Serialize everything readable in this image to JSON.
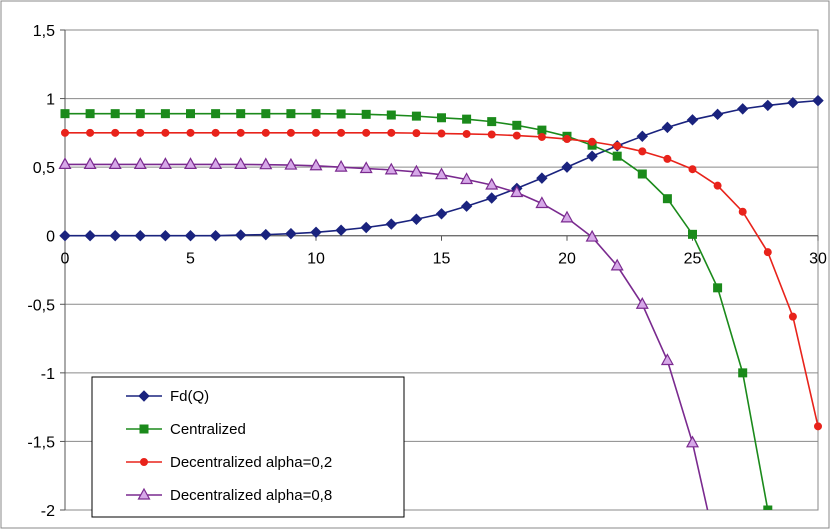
{
  "chart_data": {
    "type": "line",
    "title": "",
    "xlabel": "",
    "ylabel": "",
    "xlim": [
      0,
      30
    ],
    "ylim": [
      -2,
      1.5
    ],
    "x_ticks": [
      "0",
      "5",
      "10",
      "15",
      "20",
      "25",
      "30"
    ],
    "y_ticks": [
      "1,5",
      "1",
      "0,5",
      "0",
      "-0,5",
      "-1",
      "-1,5",
      "-2"
    ],
    "grid": "horizontal",
    "legend_position": "bottom-left",
    "series": [
      {
        "name": "Fd(Q)",
        "color": "#1a237e",
        "marker": "diamond",
        "points": [
          [
            0,
            0
          ],
          [
            1,
            0
          ],
          [
            2,
            0
          ],
          [
            3,
            0
          ],
          [
            4,
            0
          ],
          [
            5,
            0
          ],
          [
            6,
            0
          ],
          [
            7,
            0.005
          ],
          [
            8,
            0.008
          ],
          [
            9,
            0.015
          ],
          [
            10,
            0.025
          ],
          [
            11,
            0.04
          ],
          [
            12,
            0.06
          ],
          [
            13,
            0.085
          ],
          [
            14,
            0.12
          ],
          [
            15,
            0.16
          ],
          [
            16,
            0.215
          ],
          [
            17,
            0.275
          ],
          [
            18,
            0.345
          ],
          [
            19,
            0.42
          ],
          [
            20,
            0.5
          ],
          [
            21,
            0.58
          ],
          [
            22,
            0.655
          ],
          [
            23,
            0.725
          ],
          [
            24,
            0.79
          ],
          [
            25,
            0.845
          ],
          [
            26,
            0.885
          ],
          [
            27,
            0.925
          ],
          [
            28,
            0.95
          ],
          [
            29,
            0.97
          ],
          [
            30,
            0.985
          ]
        ]
      },
      {
        "name": "Centralized",
        "color": "#1b8a1b",
        "marker": "square",
        "points": [
          [
            0,
            0.89
          ],
          [
            1,
            0.89
          ],
          [
            2,
            0.89
          ],
          [
            3,
            0.89
          ],
          [
            4,
            0.89
          ],
          [
            5,
            0.89
          ],
          [
            6,
            0.89
          ],
          [
            7,
            0.89
          ],
          [
            8,
            0.89
          ],
          [
            9,
            0.89
          ],
          [
            10,
            0.89
          ],
          [
            11,
            0.888
          ],
          [
            12,
            0.885
          ],
          [
            13,
            0.88
          ],
          [
            14,
            0.872
          ],
          [
            15,
            0.86
          ],
          [
            16,
            0.85
          ],
          [
            17,
            0.832
          ],
          [
            18,
            0.805
          ],
          [
            19,
            0.77
          ],
          [
            20,
            0.725
          ],
          [
            21,
            0.66
          ],
          [
            22,
            0.58
          ],
          [
            23,
            0.45
          ],
          [
            24,
            0.27
          ],
          [
            25,
            0.01
          ],
          [
            26,
            -0.38
          ],
          [
            27,
            -1
          ],
          [
            28,
            -2
          ]
        ]
      },
      {
        "name": "Decentralized alpha=0,2",
        "color": "#e8231b",
        "marker": "circle",
        "points": [
          [
            0,
            0.75
          ],
          [
            1,
            0.75
          ],
          [
            2,
            0.75
          ],
          [
            3,
            0.75
          ],
          [
            4,
            0.75
          ],
          [
            5,
            0.75
          ],
          [
            6,
            0.75
          ],
          [
            7,
            0.75
          ],
          [
            8,
            0.75
          ],
          [
            9,
            0.75
          ],
          [
            10,
            0.75
          ],
          [
            11,
            0.75
          ],
          [
            12,
            0.75
          ],
          [
            13,
            0.75
          ],
          [
            14,
            0.748
          ],
          [
            15,
            0.745
          ],
          [
            16,
            0.742
          ],
          [
            17,
            0.738
          ],
          [
            18,
            0.73
          ],
          [
            19,
            0.72
          ],
          [
            20,
            0.705
          ],
          [
            21,
            0.685
          ],
          [
            22,
            0.655
          ],
          [
            23,
            0.615
          ],
          [
            24,
            0.56
          ],
          [
            25,
            0.485
          ],
          [
            26,
            0.365
          ],
          [
            27,
            0.175
          ],
          [
            28,
            -0.12
          ],
          [
            29,
            -0.59
          ],
          [
            30,
            -1.39
          ]
        ]
      },
      {
        "name": "Decentralized alpha=0,8",
        "color": "#7a2a8f",
        "marker": "triangle",
        "points": [
          [
            0,
            0.52
          ],
          [
            1,
            0.52
          ],
          [
            2,
            0.52
          ],
          [
            3,
            0.52
          ],
          [
            4,
            0.52
          ],
          [
            5,
            0.52
          ],
          [
            6,
            0.52
          ],
          [
            7,
            0.52
          ],
          [
            8,
            0.518
          ],
          [
            9,
            0.515
          ],
          [
            10,
            0.51
          ],
          [
            11,
            0.5
          ],
          [
            12,
            0.49
          ],
          [
            13,
            0.48
          ],
          [
            14,
            0.465
          ],
          [
            15,
            0.445
          ],
          [
            16,
            0.41
          ],
          [
            17,
            0.37
          ],
          [
            18,
            0.315
          ],
          [
            19,
            0.235
          ],
          [
            20,
            0.13
          ],
          [
            21,
            -0.01
          ],
          [
            22,
            -0.22
          ],
          [
            23,
            -0.5
          ],
          [
            24,
            -0.91
          ],
          [
            25,
            -1.51
          ],
          [
            25.6,
            -2
          ]
        ]
      }
    ]
  }
}
